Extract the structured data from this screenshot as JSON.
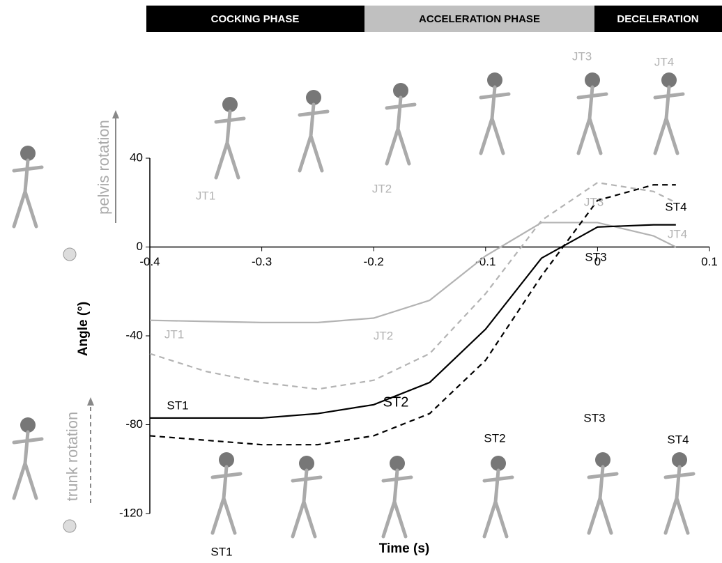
{
  "chart_data": {
    "type": "line",
    "phases": [
      "COCKING PHASE",
      "ACCELERATION PHASE",
      "DECELERATION"
    ],
    "side_labels": [
      "pelvis rotation",
      "trunk rotation"
    ],
    "x_label": "Time (s)",
    "y_label": "Angle (°)",
    "x": [
      -0.4,
      -0.35,
      -0.3,
      -0.25,
      -0.2,
      -0.15,
      -0.1,
      -0.05,
      0,
      0.05,
      0.07
    ],
    "series": [
      {
        "color": "#b3b3b3",
        "dashed": false,
        "values": [
          -33,
          -33.5,
          -34,
          -34,
          -32,
          -24,
          -4,
          11,
          11,
          5,
          0
        ]
      },
      {
        "color": "#b3b3b3",
        "dashed": true,
        "values": [
          -48,
          -56,
          -61,
          -64,
          -60,
          -48,
          -21,
          12,
          29,
          25,
          20
        ]
      },
      {
        "color": "#000000",
        "dashed": false,
        "values": [
          -77,
          -77,
          -77,
          -75,
          -71,
          -61,
          -37,
          -5,
          9,
          10,
          10
        ]
      },
      {
        "color": "#000000",
        "dashed": true,
        "values": [
          -85,
          -87,
          -89,
          -89,
          -85,
          -75,
          -51,
          -13,
          21,
          28,
          28
        ]
      }
    ],
    "annotations": [
      "JT1",
      "JT2",
      "JT3",
      "JT4",
      "JT1",
      "JT2",
      "JT3",
      "JT4",
      "ST1",
      "ST2",
      "ST3",
      "ST4",
      "ST1",
      "ST2",
      "ST3",
      "ST4"
    ],
    "xlim": [
      -0.4,
      0.1
    ],
    "xticks": [
      -0.4,
      -0.3,
      -0.2,
      -0.1,
      0,
      0.1
    ],
    "ylim": [
      -120,
      40
    ],
    "yticks": [
      40,
      0,
      -40,
      -80,
      -120
    ]
  }
}
